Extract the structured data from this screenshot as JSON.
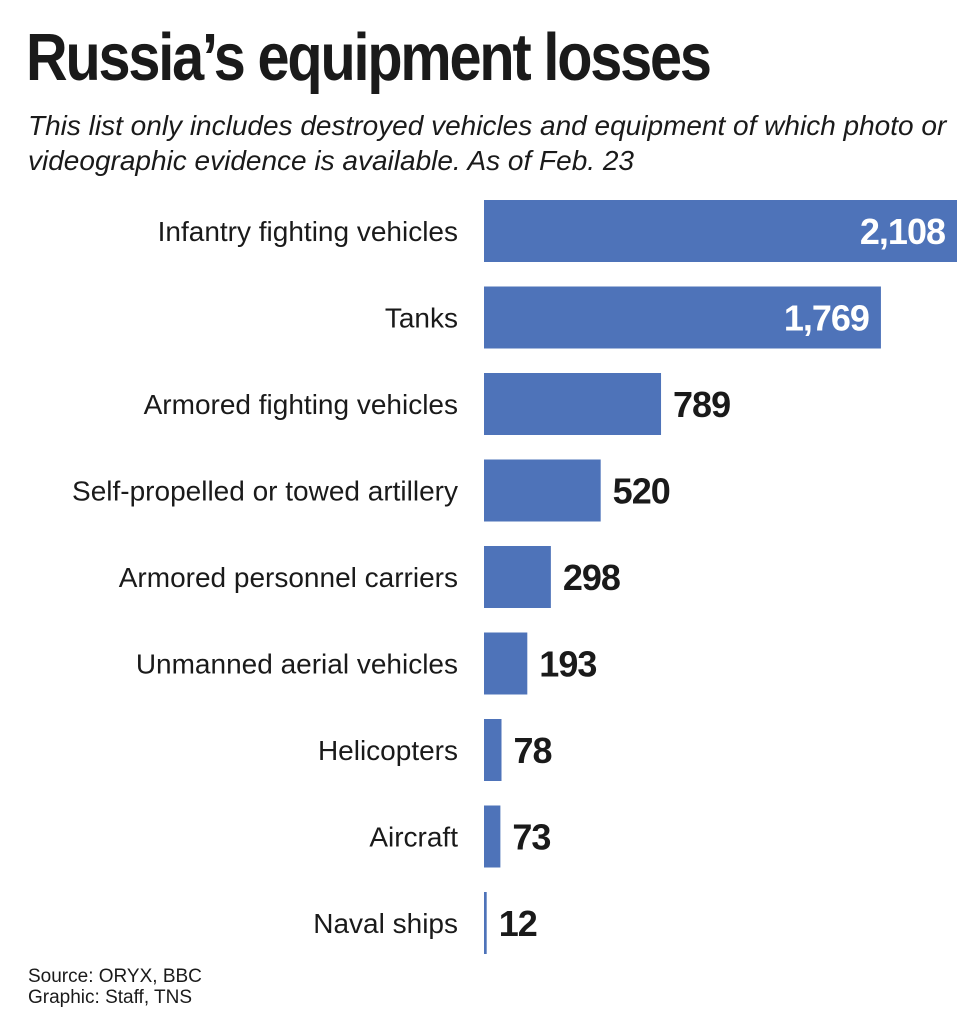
{
  "title": "Russia’s equipment losses",
  "subtitle": "This list only includes destroyed vehicles and equipment of which photo or videographic evidence is available. As of Feb. 23",
  "source": "Source: ORYX, BBC",
  "credit": "Graphic: Staff, TNS",
  "colors": {
    "bar": "#4e73b9",
    "value_inside": "#ffffff",
    "value_outside": "#1a1a1a",
    "text": "#1a1a1a"
  },
  "chart_data": {
    "type": "bar",
    "orientation": "horizontal",
    "title": "Russia’s equipment losses",
    "xlabel": "",
    "ylabel": "",
    "categories": [
      "Infantry fighting vehicles",
      "Tanks",
      "Armored fighting vehicles",
      "Self-propelled or towed artillery",
      "Armored personnel carriers",
      "Unmanned aerial vehicles",
      "Helicopters",
      "Aircraft",
      "Naval ships"
    ],
    "values": [
      2108,
      1769,
      789,
      520,
      298,
      193,
      78,
      73,
      12
    ],
    "value_labels": [
      "2,108",
      "1,769",
      "789",
      "520",
      "298",
      "193",
      "78",
      "73",
      "12"
    ],
    "xlim": [
      0,
      2108
    ],
    "grid": false,
    "legend": "none"
  }
}
